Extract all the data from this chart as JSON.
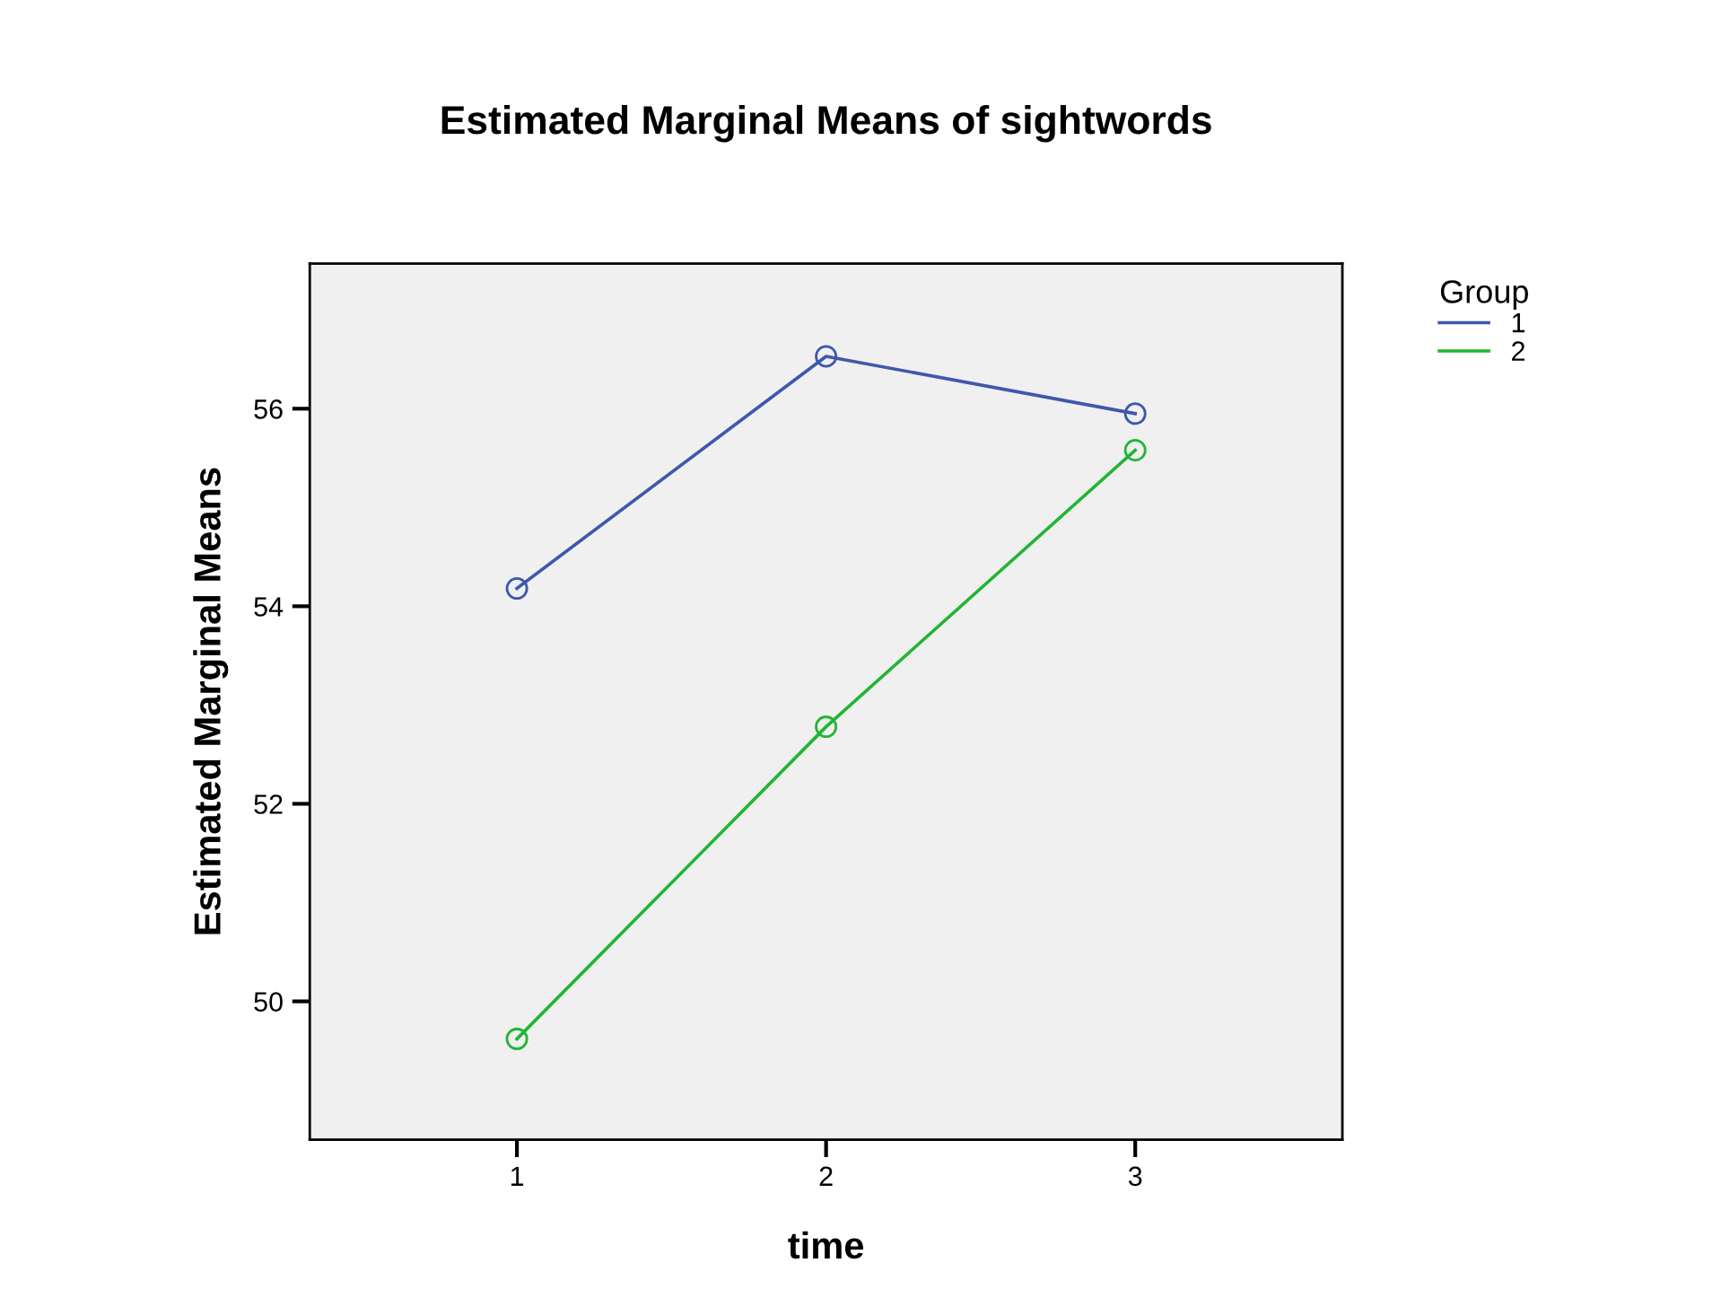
{
  "chart_data": {
    "type": "line",
    "title": "Estimated Marginal Means of sightwords",
    "xlabel": "time",
    "ylabel": "Estimated Marginal Means",
    "legend_title": "Group",
    "categories": [
      "1",
      "2",
      "3"
    ],
    "series": [
      {
        "name": "1",
        "color": "#3e58ac",
        "values": [
          54.18,
          56.53,
          55.95
        ]
      },
      {
        "name": "2",
        "color": "#21b534",
        "values": [
          49.62,
          52.78,
          55.58
        ]
      }
    ],
    "ylim": [
      48.6,
      57.47
    ],
    "yticks": [
      50,
      52,
      54,
      56
    ],
    "grid": false,
    "legend": "top right",
    "marker": "circle",
    "line_style": "solid"
  }
}
